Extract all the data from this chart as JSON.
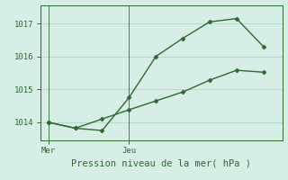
{
  "line1_x": [
    0,
    1,
    2,
    3,
    4,
    5,
    6,
    7,
    8
  ],
  "line1_y": [
    1014.0,
    1013.82,
    1013.75,
    1014.75,
    1016.0,
    1016.55,
    1017.05,
    1017.15,
    1016.3
  ],
  "line2_x": [
    0,
    1,
    2,
    3,
    4,
    5,
    6,
    7,
    8
  ],
  "line2_y": [
    1014.0,
    1013.82,
    1014.1,
    1014.38,
    1014.65,
    1014.92,
    1015.28,
    1015.58,
    1015.52
  ],
  "mer_x": 0,
  "jeu_x": 3,
  "xtick_positions": [
    0,
    3
  ],
  "xtick_labels": [
    "Mer",
    "Jeu"
  ],
  "ytick_positions": [
    1014,
    1015,
    1016,
    1017
  ],
  "ytick_labels": [
    "1014",
    "1015",
    "1016",
    "1017"
  ],
  "ylim": [
    1013.45,
    1017.55
  ],
  "xlim": [
    -0.3,
    8.7
  ],
  "xlabel": "Pression niveau de la mer( hPa )",
  "line_color": "#2d6a2d",
  "marker": "D",
  "marker_size": 2.5,
  "line_width": 1.0,
  "bg_color": "#d6eee6",
  "grid_color": "#b8d8cc",
  "xlabel_fontsize": 7.5,
  "tick_fontsize": 6.5
}
